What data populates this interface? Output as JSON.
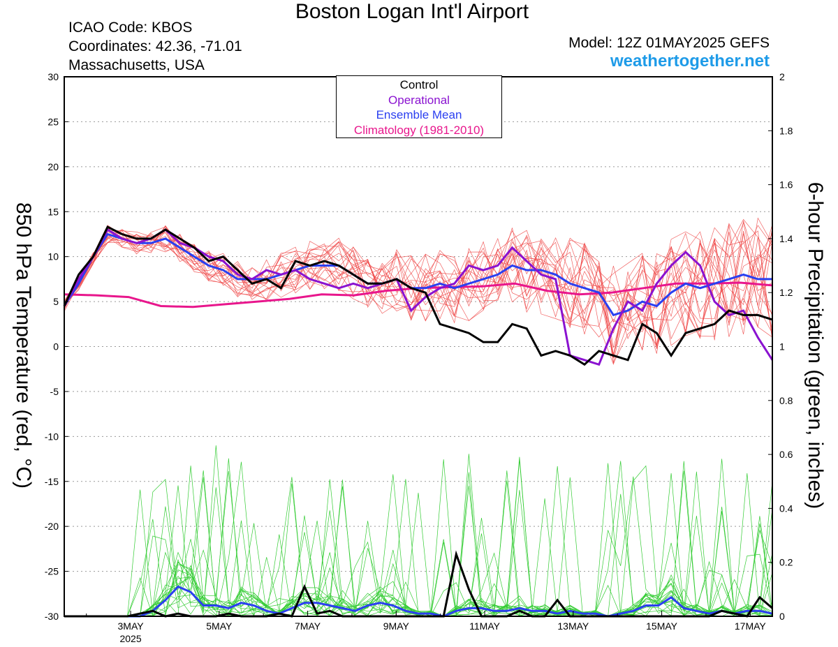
{
  "title": "Boston Logan Int'l Airport",
  "station": {
    "icao": "ICAO Code: KBOS",
    "coords": "Coordinates: 42.36, -71.01",
    "region": "Massachusetts, USA"
  },
  "model": "Model: 12Z 01MAY2025 GEFS",
  "site": "weathertogether.net",
  "legend": {
    "control": "Control",
    "operational": "Operational",
    "mean": "Ensemble Mean",
    "clim": "Climatology (1981-2010)"
  },
  "colors": {
    "control": "#000000",
    "operational": "#8a12d0",
    "mean": "#2a3ff0",
    "clim": "#e8168c",
    "members_temp": "#ee4444",
    "members_precip": "#33cc33",
    "site": "#1e9be8"
  },
  "chart_data": {
    "type": "line",
    "title": "Boston Logan Int'l Airport",
    "ylabel": "850 hPa Temperature (red, °C)",
    "y2label": "6-hour Precipitation (green, inches)",
    "ylim": [
      -30,
      30
    ],
    "y2lim": [
      0,
      2
    ],
    "grid": "horizontal dotted",
    "legend_position": "top-center",
    "x_unit_hours": "hours after 12Z 01MAY2025, 6-hour steps",
    "xlim_hours": [
      0,
      384
    ],
    "x_ticks": [
      {
        "label": "3MAY",
        "sub": "2025",
        "hour": 36
      },
      {
        "label": "5MAY",
        "hour": 84
      },
      {
        "label": "7MAY",
        "hour": 132
      },
      {
        "label": "9MAY",
        "hour": 180
      },
      {
        "label": "11MAY",
        "hour": 228
      },
      {
        "label": "13MAY",
        "hour": 276
      },
      {
        "label": "15MAY",
        "hour": 324
      },
      {
        "label": "17MAY",
        "hour": 372
      }
    ],
    "y_ticks": [
      30,
      25,
      20,
      15,
      10,
      5,
      0,
      -5,
      -10,
      -15,
      -20,
      -25,
      -30
    ],
    "y2_ticks": [
      2,
      1.8,
      1.6,
      1.4,
      1.2,
      1,
      0.8,
      0.6,
      0.4,
      0.2,
      0
    ],
    "series": [
      {
        "name": "Control",
        "axis": "temp",
        "values": [
          4.5,
          8,
          10,
          13.3,
          12.5,
          12,
          12,
          13,
          12,
          11,
          9.5,
          10,
          8.5,
          7,
          7.5,
          6.5,
          9.5,
          9,
          9.5,
          9,
          8,
          7,
          7,
          7.5,
          6.5,
          6,
          2.5,
          2,
          1.5,
          0.5,
          0.5,
          2.5,
          2,
          -1,
          -0.5,
          -1,
          -2,
          -0.5,
          -1,
          -1.5,
          2.5,
          1.5,
          -1,
          1.5,
          2,
          2.5,
          4,
          3.5,
          3.5,
          3
        ]
      },
      {
        "name": "Operational",
        "axis": "temp",
        "values": [
          4.5,
          7.5,
          10,
          13,
          12,
          11.5,
          12,
          13,
          11.5,
          11,
          10,
          9.5,
          8,
          7.5,
          8.5,
          8,
          8.5,
          7.5,
          7,
          6.5,
          7,
          6.5,
          7,
          7.5,
          4,
          5.5,
          6.5,
          7,
          9,
          8.5,
          9,
          11,
          9.5,
          8,
          7.5,
          -1,
          -1.5,
          -2,
          2,
          5,
          4,
          7,
          9,
          10.5,
          9,
          5,
          3.5,
          4,
          1,
          -1.5
        ]
      },
      {
        "name": "Ensemble Mean",
        "axis": "temp",
        "values": [
          4.5,
          7,
          10,
          12.5,
          12,
          11.5,
          11.5,
          12,
          11,
          10,
          9,
          8.5,
          7.5,
          7.5,
          7.5,
          8,
          8.5,
          9,
          9,
          9,
          8,
          7,
          7,
          7.5,
          6.5,
          6.5,
          7,
          6.5,
          7,
          7.5,
          8,
          9,
          8.5,
          8.5,
          8,
          7,
          6.5,
          6,
          3.5,
          4,
          5,
          4.5,
          6,
          7,
          6.5,
          7,
          7.5,
          8,
          7.5,
          7.5
        ]
      },
      {
        "name": "Climatology (1981-2010)",
        "axis": "temp",
        "values": [
          5.8,
          5.7,
          5.5,
          4.5,
          4.4,
          4.7,
          5,
          5.3,
          5.8,
          5.7,
          6.2,
          6.5,
          6.6,
          6.7,
          7,
          6.2,
          5.8,
          6,
          6.5,
          7,
          7,
          7.1,
          6.8
        ]
      },
      {
        "name": "Control precip",
        "axis": "precip",
        "values": [
          0,
          0,
          0,
          0,
          0,
          0,
          0.01,
          0.02,
          0,
          0.01,
          0,
          0,
          0,
          0.01,
          0,
          0,
          0,
          0.01,
          0,
          0.11,
          0.01,
          0.02,
          0,
          0,
          0,
          0,
          0,
          0,
          0,
          0,
          0,
          0.23,
          0.1,
          0,
          0,
          0,
          0.02,
          0,
          0,
          0.06,
          0,
          0,
          0,
          0,
          0,
          0,
          0,
          0,
          0,
          0,
          0,
          0,
          0.02,
          0.01,
          0,
          0.07,
          0.03
        ]
      },
      {
        "name": "Mean precip",
        "axis": "precip",
        "values": [
          0,
          0,
          0,
          0,
          0,
          0,
          0,
          0.02,
          0.06,
          0.11,
          0.09,
          0.04,
          0.04,
          0.03,
          0.05,
          0.04,
          0.02,
          0.01,
          0.03,
          0.05,
          0.05,
          0.04,
          0.03,
          0.02,
          0.04,
          0.05,
          0.04,
          0.02,
          0.01,
          0.01,
          0,
          0.02,
          0.03,
          0.03,
          0.02,
          0.02,
          0.03,
          0.02,
          0.02,
          0.01,
          0.02,
          0.01,
          0.01,
          0,
          0.01,
          0.02,
          0.04,
          0.04,
          0.07,
          0.03,
          0.02,
          0.01,
          0.02,
          0.01,
          0.02,
          0.02,
          0.01
        ]
      }
    ]
  }
}
